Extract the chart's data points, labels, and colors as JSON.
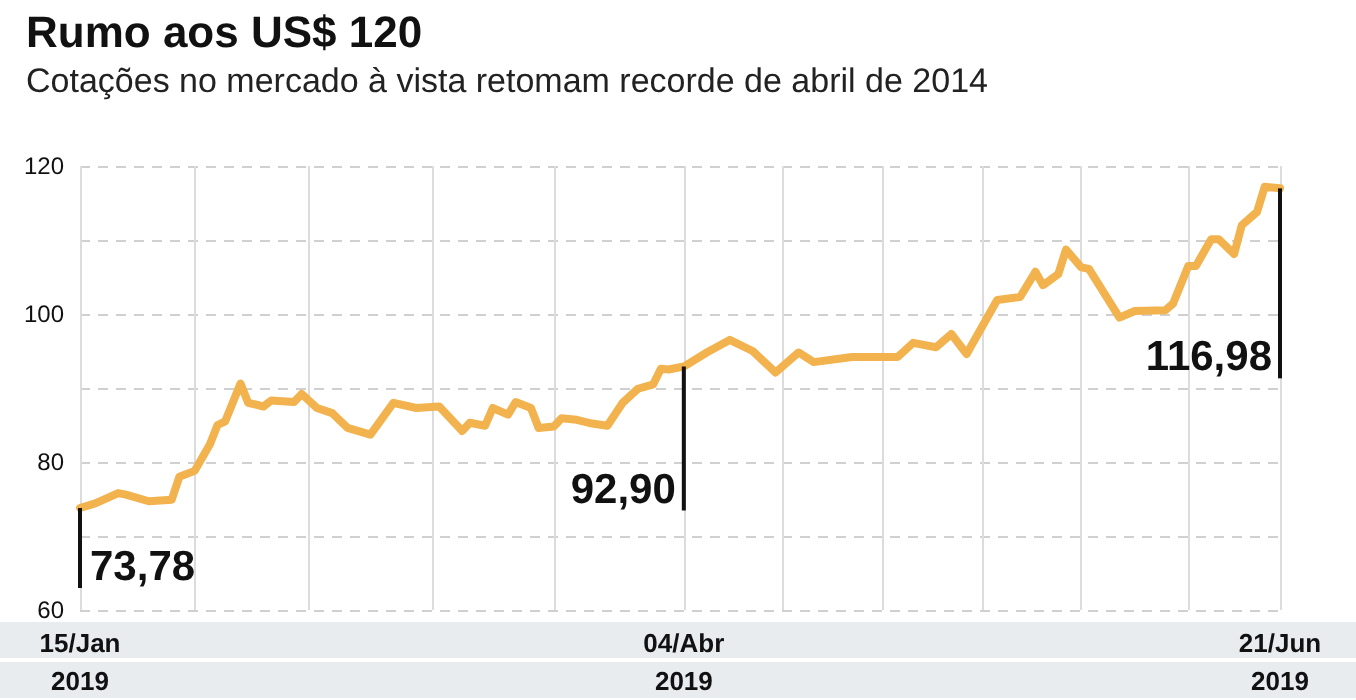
{
  "chart_data": {
    "type": "line",
    "title": "Rumo aos US$ 120",
    "subtitle": "Cotações no mercado à vista retomam recorde de abril de 2014",
    "x": [
      "2019-01-15",
      "2019-01-17",
      "2019-01-20",
      "2019-01-21",
      "2019-01-24",
      "2019-01-27",
      "2019-01-28",
      "2019-01-30",
      "2019-02-01",
      "2019-02-02",
      "2019-02-03",
      "2019-02-05",
      "2019-02-06",
      "2019-02-08",
      "2019-02-09",
      "2019-02-12",
      "2019-02-13",
      "2019-02-15",
      "2019-02-17",
      "2019-02-19",
      "2019-02-22",
      "2019-02-25",
      "2019-02-28",
      "2019-03-03",
      "2019-03-06",
      "2019-03-07",
      "2019-03-09",
      "2019-03-10",
      "2019-03-12",
      "2019-03-13",
      "2019-03-15",
      "2019-03-16",
      "2019-03-18",
      "2019-03-19",
      "2019-03-21",
      "2019-03-23",
      "2019-03-25",
      "2019-03-27",
      "2019-03-29",
      "2019-03-31",
      "2019-04-01",
      "2019-04-02",
      "2019-04-04",
      "2019-04-07",
      "2019-04-10",
      "2019-04-13",
      "2019-04-16",
      "2019-04-19",
      "2019-04-21",
      "2019-04-26",
      "2019-05-02",
      "2019-05-04",
      "2019-05-07",
      "2019-05-09",
      "2019-05-11",
      "2019-05-15",
      "2019-05-18",
      "2019-05-20",
      "2019-05-21",
      "2019-05-23",
      "2019-05-24",
      "2019-05-26",
      "2019-05-27",
      "2019-05-31",
      "2019-06-02",
      "2019-06-06",
      "2019-06-07",
      "2019-06-09",
      "2019-06-10",
      "2019-06-12",
      "2019-06-13",
      "2019-06-15",
      "2019-06-16",
      "2019-06-18",
      "2019-06-19",
      "2019-06-21"
    ],
    "series": [
      {
        "color": "#f2b24e",
        "values": [
          73.78,
          74.4,
          75.8,
          75.6,
          74.7,
          74.9,
          78,
          78.8,
          82.4,
          85,
          85.5,
          90.6,
          88,
          87.5,
          88.3,
          88.1,
          89.2,
          87.3,
          86.6,
          84.6,
          83.7,
          88,
          87.3,
          87.5,
          84.2,
          85.3,
          84.9,
          87.3,
          86.4,
          88.1,
          87.3,
          84.6,
          84.8,
          85.9,
          85.7,
          85.2,
          84.9,
          88,
          89.9,
          90.5,
          92.6,
          92.5,
          92.9,
          94.8,
          96.5,
          95,
          92.1,
          94.8,
          93.5,
          94.2,
          94.2,
          96.1,
          95.5,
          97.3,
          94.6,
          101.9,
          102.3,
          105.7,
          103.9,
          105.4,
          108.7,
          106.3,
          106.1,
          99.5,
          100.4,
          100.5,
          101.4,
          106.5,
          106.5,
          110.1,
          110.1,
          108.1,
          112,
          113.8,
          117.2,
          116.98
        ]
      }
    ],
    "xlim": [
      "2019-01-15",
      "2019-06-21"
    ],
    "xticks": [
      {
        "value": "2019-01-15",
        "label": "15/Jan\n2019"
      },
      {
        "value": "2019-01-30",
        "label": null
      },
      {
        "value": "2019-02-14",
        "label": null
      },
      {
        "value": "2019-03-02",
        "label": null
      },
      {
        "value": "2019-03-18",
        "label": null
      },
      {
        "value": "2019-04-04",
        "label": "04/Abr\n2019"
      },
      {
        "value": "2019-04-17",
        "label": null
      },
      {
        "value": "2019-04-30",
        "label": null
      },
      {
        "value": "2019-05-13",
        "label": null
      },
      {
        "value": "2019-05-26",
        "label": null
      },
      {
        "value": "2019-06-09",
        "label": null
      },
      {
        "value": "2019-06-21",
        "label": "21/Jun\n2019"
      }
    ],
    "ylim": [
      60,
      120
    ],
    "yticks": [
      60,
      {
        "value": 70,
        "label": null
      },
      80,
      {
        "value": 90,
        "label": null
      },
      100,
      {
        "value": 110,
        "label": null
      },
      120
    ],
    "grid": true,
    "marker": "none",
    "line_style": "solid",
    "annotations": [
      {
        "text": "73,78",
        "x": "2019-01-15",
        "y": 73.78
      },
      {
        "text": "92,90",
        "x": "2019-04-04",
        "y": 92.9
      },
      {
        "text": "116,98",
        "x": "2019-06-21",
        "y": 116.98
      }
    ]
  }
}
